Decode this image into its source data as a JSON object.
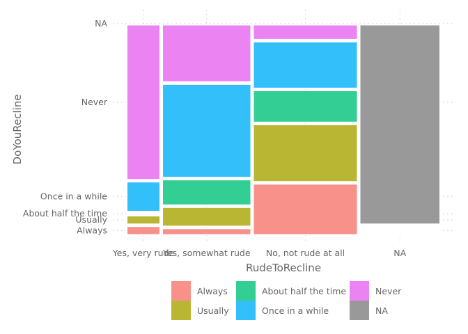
{
  "chart_data": {
    "type": "mosaic",
    "xlabel": "RudeToRecline",
    "ylabel": "DoYouRecline",
    "categories": [
      "Yes, very rude",
      "Yes, somewhat rude",
      "No, not rude at all",
      "NA"
    ],
    "column_shares": [
      0.11,
      0.4,
      0.74,
      1.0
    ],
    "levels": [
      "Always",
      "Usually",
      "About half the time",
      "Once in a while",
      "Never",
      "NA"
    ],
    "colors": [
      "#F8766D",
      "#B79F00",
      "#00BA38",
      "#00BFC4",
      "#619CFF",
      "#F564E3"
    ],
    "palette": {
      "Always": "#F8918A",
      "Usually": "#B8B632",
      "About half the time": "#32CE93",
      "Once in a while": "#33BFF9",
      "Never": "#EB83F2",
      "NA": "#999999"
    },
    "columns": [
      {
        "category": "Yes, very rude",
        "values": [
          0.05,
          0.05,
          0.01,
          0.15,
          0.74,
          0.0
        ]
      },
      {
        "category": "Yes, somewhat rude",
        "values": [
          0.04,
          0.1,
          0.13,
          0.45,
          0.28,
          0.0
        ]
      },
      {
        "category": "No, not rude at all",
        "values": [
          0.25,
          0.28,
          0.16,
          0.23,
          0.08,
          0.0
        ]
      },
      {
        "category": "NA",
        "values": [
          0.01,
          0.01,
          0.01,
          0.01,
          0.01,
          0.95
        ]
      }
    ],
    "y_tick_labels": [
      "Always",
      "Usually",
      "About half the time",
      "Once in a while",
      "Never",
      "NA"
    ],
    "legend": {
      "position": "bottom",
      "entries": [
        "Always",
        "Usually",
        "About half the time",
        "Once in a while",
        "Never",
        "NA"
      ]
    },
    "grid": true
  }
}
